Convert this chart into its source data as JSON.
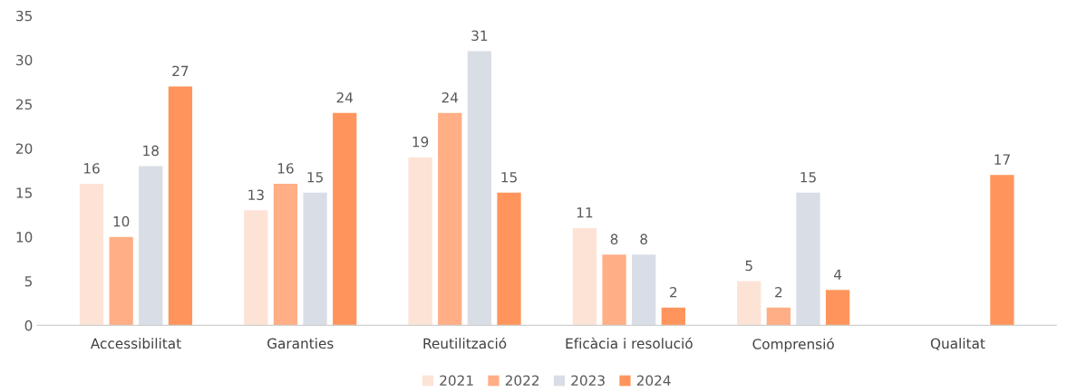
{
  "chart_data": {
    "type": "bar",
    "categories": [
      "Accessibilitat",
      "Garanties",
      "Reutilització",
      "Eficàcia i resolució",
      "Comprensió",
      "Qualitat"
    ],
    "series": [
      {
        "name": "2021",
        "color": "#fde3d6",
        "values": [
          16,
          13,
          19,
          11,
          5,
          null
        ]
      },
      {
        "name": "2022",
        "color": "#ffae85",
        "values": [
          10,
          16,
          24,
          8,
          2,
          null
        ]
      },
      {
        "name": "2023",
        "color": "#d9dde6",
        "values": [
          18,
          15,
          31,
          8,
          15,
          null
        ]
      },
      {
        "name": "2024",
        "color": "#ff955c",
        "values": [
          27,
          24,
          15,
          2,
          4,
          17
        ]
      }
    ],
    "ylim": [
      0,
      35
    ],
    "yticks": [
      0,
      5,
      10,
      15,
      20,
      25,
      30,
      35
    ],
    "grid": false,
    "legend": "bottom",
    "data_labels": true
  }
}
